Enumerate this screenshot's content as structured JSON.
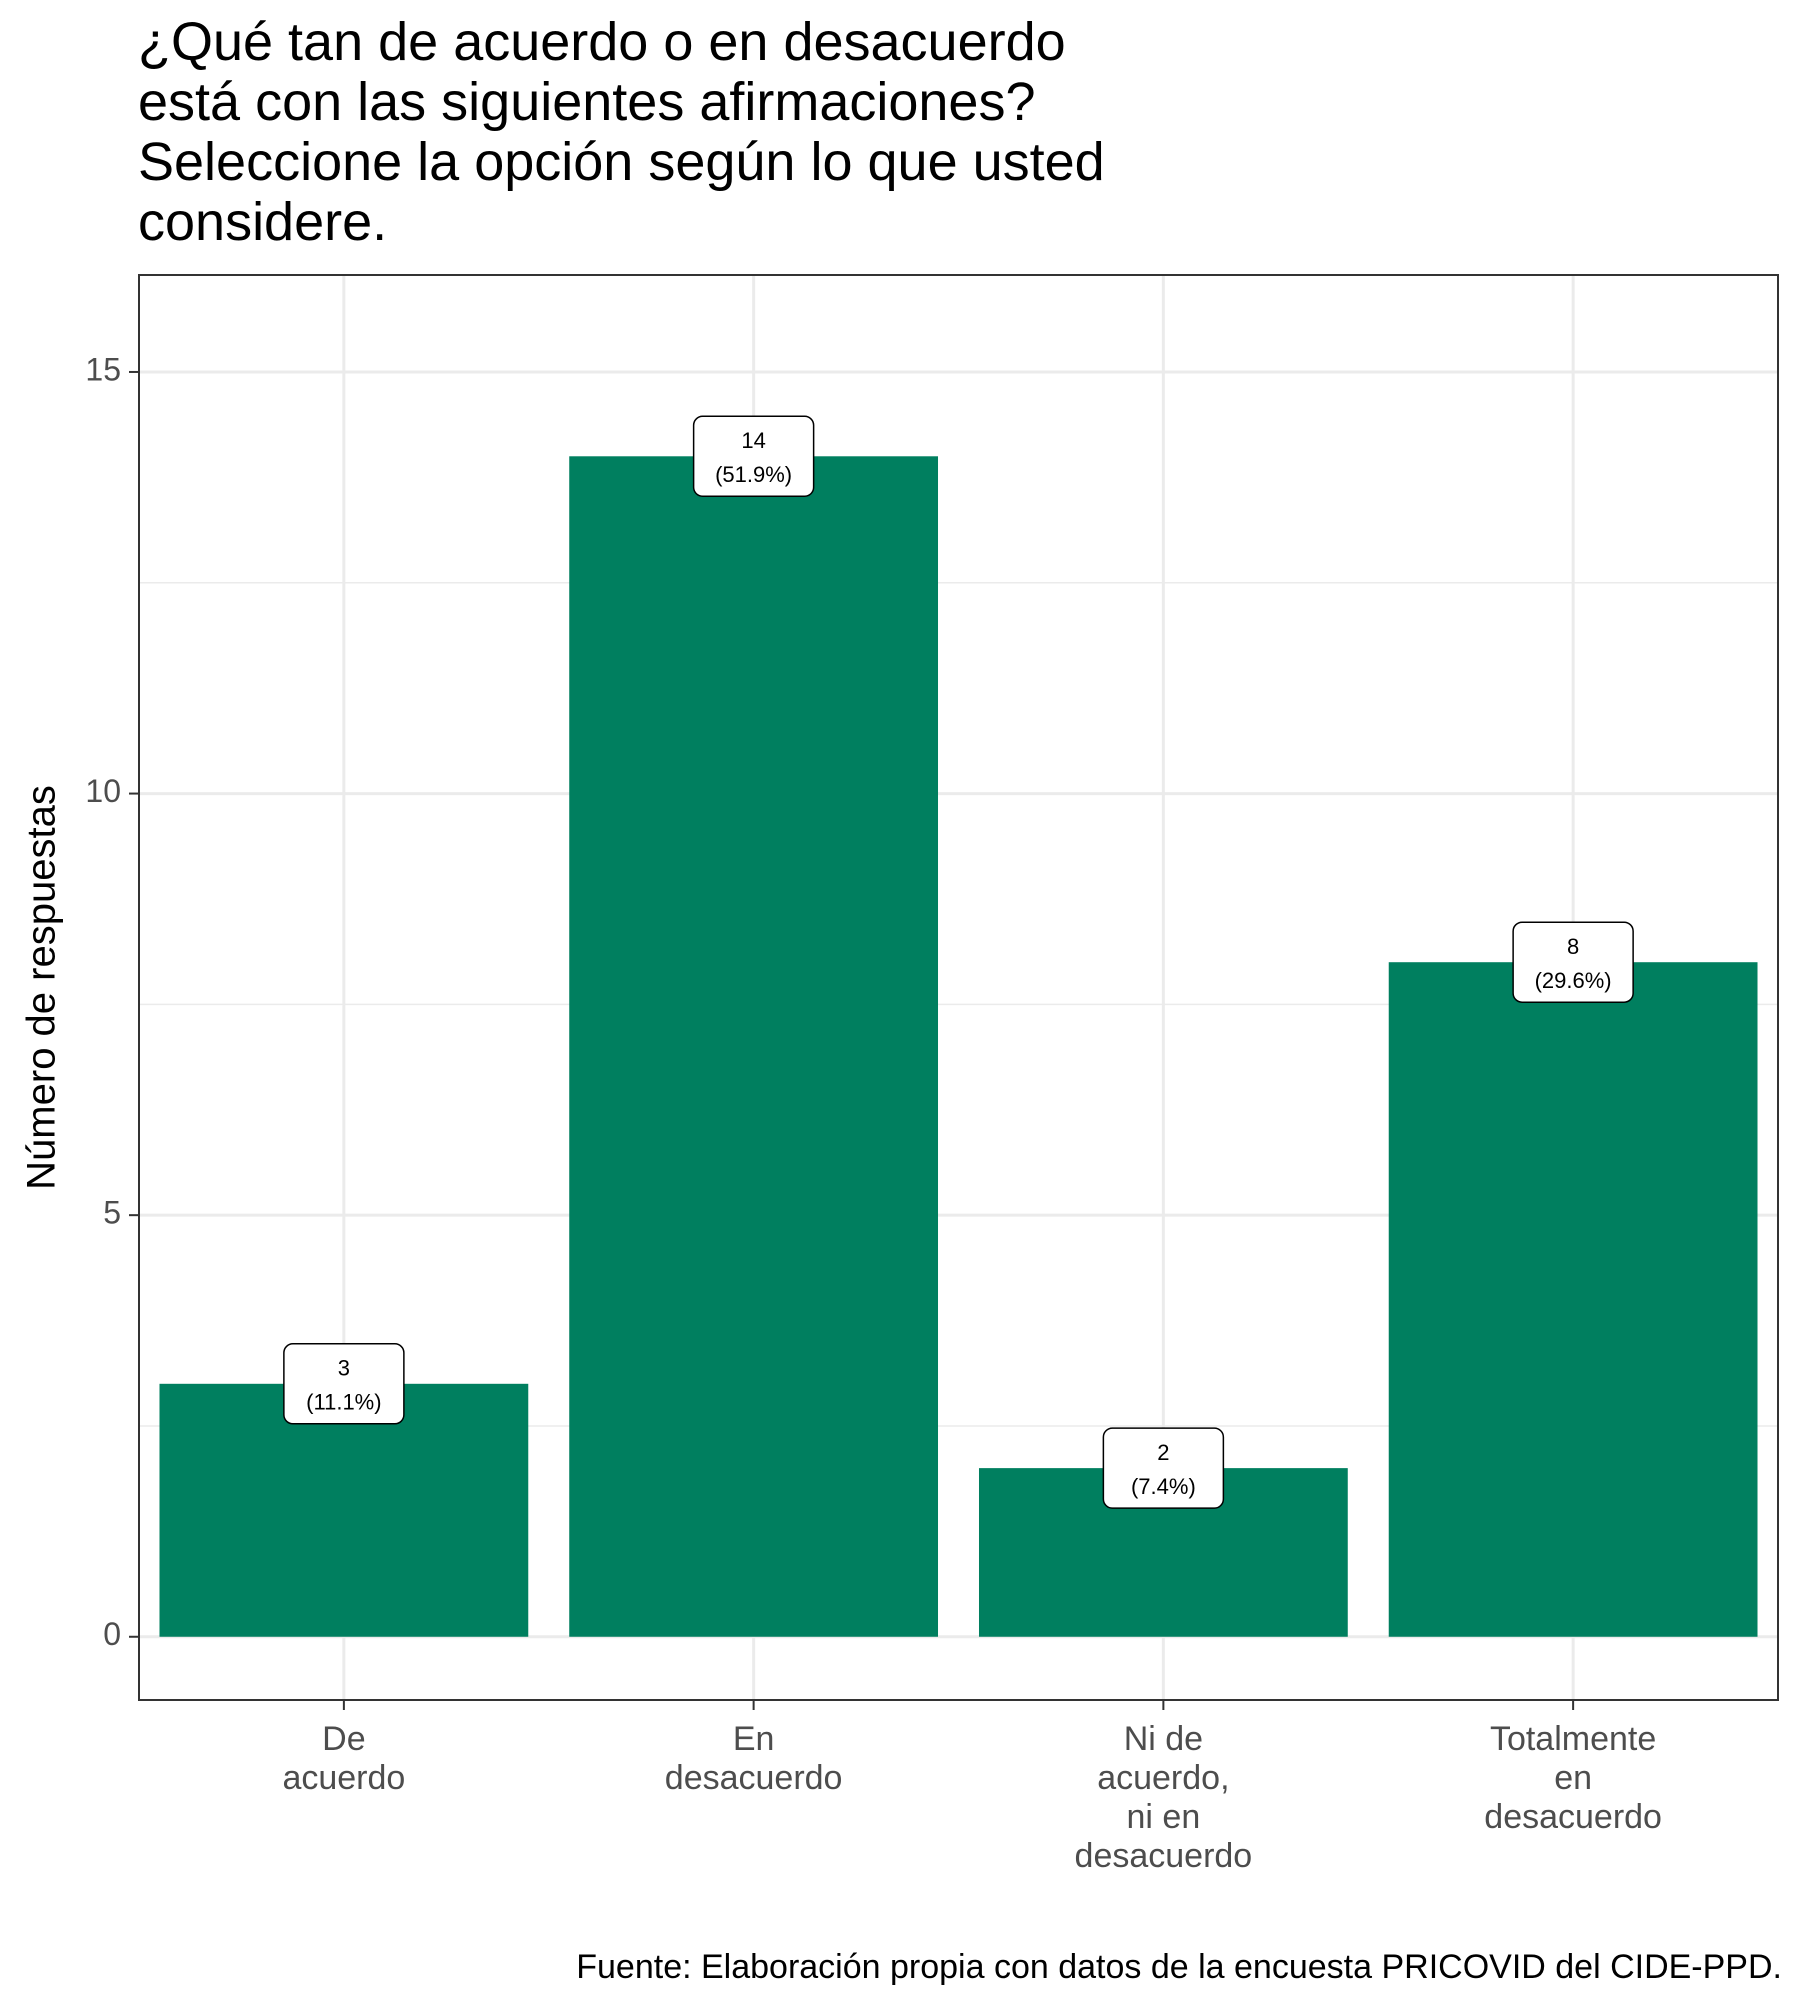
{
  "chart_data": {
    "type": "bar",
    "title_lines": [
      "¿Qué tan de acuerdo o en desacuerdo",
      "está con las siguientes afirmaciones?",
      "Seleccione la opción según lo que usted",
      "considere."
    ],
    "xlabel": "",
    "ylabel": "Número de respuestas",
    "categories": [
      [
        "De",
        "acuerdo"
      ],
      [
        "En",
        "desacuerdo"
      ],
      [
        "Ni de",
        "acuerdo,",
        "ni en",
        "desacuerdo"
      ],
      [
        "Totalmente",
        "en",
        "desacuerdo"
      ]
    ],
    "values": [
      3,
      14,
      2,
      8
    ],
    "data_labels": [
      [
        "3",
        "(11.1%)"
      ],
      [
        "14",
        "(51.9%)"
      ],
      [
        "2",
        "(7.4%)"
      ],
      [
        "8",
        "(29.6%)"
      ]
    ],
    "yticks": [
      0,
      5,
      10,
      15
    ],
    "ylim": [
      -0.75,
      16.15
    ],
    "grid": true,
    "legend": "none",
    "bar_color": "#007F5F",
    "caption": "Fuente: Elaboración propia con datos de la encuesta PRICOVID del CIDE-PPD."
  }
}
